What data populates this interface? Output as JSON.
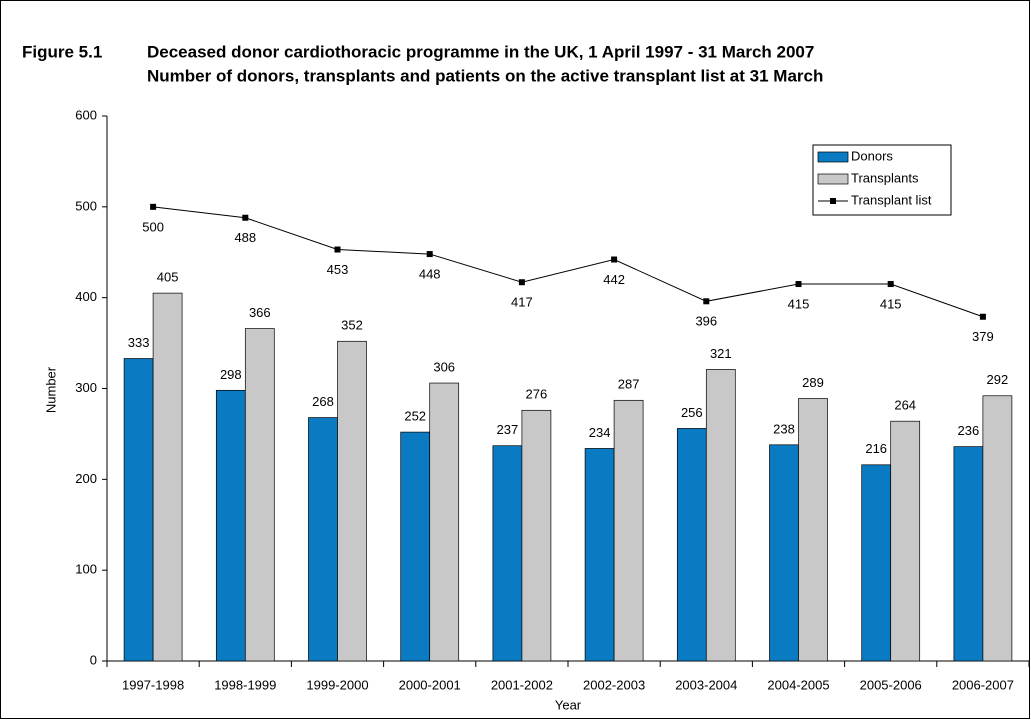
{
  "chart_data": {
    "type": "bar",
    "figure_label": "Figure 5.1",
    "title": "Deceased donor cardiothoracic programme in the UK, 1 April 1997 - 31 March 2007",
    "subtitle": "Number of donors, transplants and patients on the active transplant list at 31 March",
    "x_label": "Year",
    "y_label": "Number",
    "categories": [
      "1997-1998",
      "1998-1999",
      "1999-2000",
      "2000-2001",
      "2001-2002",
      "2002-2003",
      "2003-2004",
      "2004-2005",
      "2005-2006",
      "2006-2007"
    ],
    "series": [
      {
        "name": "Donors",
        "type": "bar",
        "color": "#0a7bc2",
        "values": [
          333,
          298,
          268,
          252,
          237,
          234,
          256,
          238,
          216,
          236
        ]
      },
      {
        "name": "Transplants",
        "type": "bar",
        "color": "#c8c8c8",
        "values": [
          405,
          366,
          352,
          306,
          276,
          287,
          321,
          289,
          264,
          292
        ]
      },
      {
        "name": "Transplant list",
        "type": "line",
        "color": "#000000",
        "values": [
          500,
          488,
          453,
          448,
          417,
          442,
          396,
          415,
          415,
          379
        ]
      }
    ],
    "ylim": [
      0,
      600
    ],
    "yticks": [
      0,
      100,
      200,
      300,
      400,
      500,
      600
    ],
    "legend": "top-right"
  }
}
